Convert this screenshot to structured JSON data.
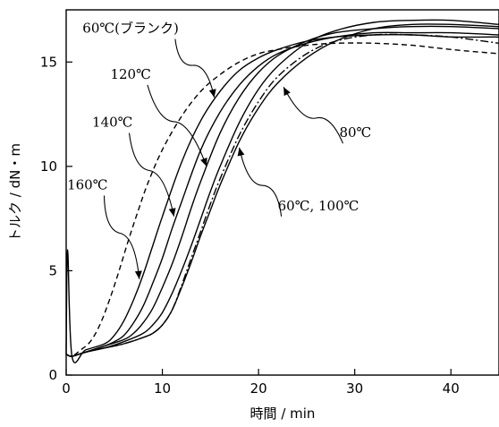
{
  "chart_data": {
    "type": "line",
    "xlabel": "時間 / min",
    "ylabel": "トルク / dN・m",
    "xlim": [
      0,
      45
    ],
    "ylim": [
      0,
      17.5
    ],
    "xticks": [
      0,
      10,
      20,
      30,
      40
    ],
    "yticks": [
      0,
      5,
      10,
      15
    ],
    "grid": false,
    "series": [
      {
        "name": "160℃",
        "style": "solid",
        "color": "#000000",
        "x": [
          0,
          0.15,
          0.6,
          2,
          4,
          5,
          6,
          7,
          8,
          9,
          10,
          12,
          14,
          16,
          18,
          20,
          22,
          25,
          28,
          32,
          36,
          40,
          45
        ],
        "y": [
          1.0,
          6.0,
          0.9,
          1.2,
          1.5,
          1.9,
          2.6,
          3.6,
          4.8,
          6.2,
          7.6,
          10.2,
          12.2,
          13.6,
          14.6,
          15.2,
          15.6,
          16.0,
          16.2,
          16.3,
          16.3,
          16.2,
          16.2
        ]
      },
      {
        "name": "140℃",
        "style": "solid",
        "color": "#000000",
        "x": [
          0,
          0.6,
          2,
          4,
          5,
          6,
          7,
          8,
          9,
          10,
          11,
          12,
          14,
          16,
          18,
          20,
          22,
          25,
          28,
          32,
          36,
          40,
          45
        ],
        "y": [
          1.0,
          0.9,
          1.1,
          1.4,
          1.6,
          1.9,
          2.5,
          3.3,
          4.4,
          5.6,
          7.0,
          8.3,
          10.8,
          12.6,
          13.9,
          14.8,
          15.4,
          15.9,
          16.2,
          16.4,
          16.4,
          16.4,
          16.3
        ]
      },
      {
        "name": "120℃",
        "style": "solid",
        "color": "#000000",
        "x": [
          0,
          0.6,
          2,
          4,
          6,
          7,
          8,
          9,
          10,
          11,
          12,
          13,
          14,
          16,
          18,
          20,
          22,
          25,
          28,
          32,
          36,
          40,
          45
        ],
        "y": [
          1.0,
          0.9,
          1.1,
          1.4,
          1.7,
          2.0,
          2.5,
          3.2,
          4.2,
          5.3,
          6.6,
          8.0,
          9.3,
          11.6,
          13.3,
          14.5,
          15.3,
          16.0,
          16.4,
          16.6,
          16.7,
          16.7,
          16.6
        ]
      },
      {
        "name": "80℃",
        "style": "solid",
        "color": "#000000",
        "x": [
          0,
          0.6,
          2,
          4,
          6,
          8,
          9,
          10,
          11,
          12,
          13,
          14,
          15,
          16,
          18,
          20,
          22,
          25,
          28,
          32,
          36,
          40,
          45
        ],
        "y": [
          1.0,
          0.9,
          1.1,
          1.3,
          1.6,
          2.0,
          2.4,
          3.0,
          3.9,
          5.0,
          6.2,
          7.5,
          8.8,
          10.0,
          12.1,
          13.7,
          14.8,
          15.9,
          16.5,
          16.9,
          17.0,
          17.0,
          16.8
        ]
      },
      {
        "name": "60℃",
        "style": "solid",
        "color": "#000000",
        "x": [
          0,
          0.6,
          2,
          4,
          6,
          8,
          9,
          10,
          11,
          12,
          13,
          14,
          15,
          16,
          18,
          20,
          22,
          25,
          28,
          32,
          36,
          40,
          45
        ],
        "y": [
          1.0,
          0.9,
          1.1,
          1.3,
          1.5,
          1.8,
          2.0,
          2.4,
          3.1,
          4.2,
          5.4,
          6.7,
          7.9,
          9.1,
          11.2,
          12.8,
          14.0,
          15.2,
          16.0,
          16.6,
          16.8,
          16.8,
          16.7
        ]
      },
      {
        "name": "100℃",
        "style": "dashdot",
        "color": "#000000",
        "x": [
          0,
          0.6,
          2,
          4,
          6,
          8,
          9,
          10,
          11,
          12,
          13,
          14,
          15,
          16,
          18,
          20,
          22,
          25,
          28,
          32,
          36,
          40,
          45
        ],
        "y": [
          1.0,
          0.9,
          1.1,
          1.3,
          1.5,
          1.8,
          2.0,
          2.4,
          3.1,
          4.3,
          5.6,
          6.9,
          8.2,
          9.4,
          11.5,
          13.1,
          14.3,
          15.4,
          16.0,
          16.3,
          16.3,
          16.2,
          15.9
        ]
      },
      {
        "name": "60℃(ブランク)",
        "style": "dashed",
        "color": "#000000",
        "x": [
          0,
          0.6,
          1.5,
          2.5,
          3.5,
          4.5,
          5.5,
          6.5,
          7.5,
          8.5,
          10,
          12,
          14,
          16,
          18,
          20,
          22,
          25,
          28,
          32,
          36,
          40,
          45
        ],
        "y": [
          1.0,
          0.9,
          1.2,
          1.6,
          2.4,
          3.6,
          5.0,
          6.5,
          7.9,
          9.2,
          10.8,
          12.4,
          13.6,
          14.4,
          15.0,
          15.4,
          15.6,
          15.8,
          15.9,
          15.9,
          15.8,
          15.6,
          15.4
        ]
      }
    ],
    "annotations": [
      {
        "text": "60℃(ブランク)",
        "x": 1.7,
        "y": 16.4,
        "arrow_to": [
          15.4,
          13.3
        ]
      },
      {
        "text": "120℃",
        "x": 4.6,
        "y": 14.2,
        "arrow_to": [
          14.6,
          10.0
        ]
      },
      {
        "text": "140℃",
        "x": 2.7,
        "y": 11.9,
        "arrow_to": [
          11.2,
          7.6
        ]
      },
      {
        "text": "160℃",
        "x": 0.1,
        "y": 8.9,
        "arrow_to": [
          7.6,
          4.6
        ]
      },
      {
        "text": "80℃",
        "x": 28.4,
        "y": 11.4,
        "arrow_to": [
          22.6,
          13.8
        ]
      },
      {
        "text": "60℃, 100℃",
        "x": 22.0,
        "y": 7.9,
        "arrow_to": [
          18.0,
          10.9
        ]
      }
    ]
  }
}
